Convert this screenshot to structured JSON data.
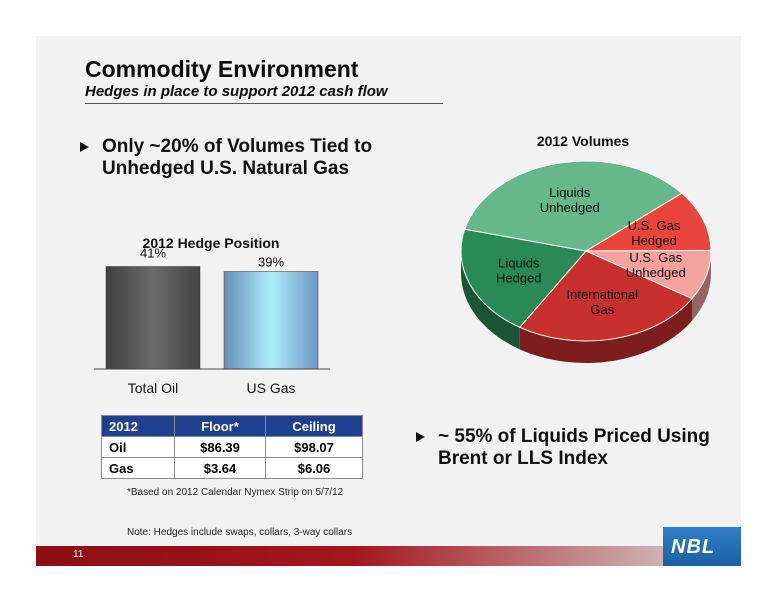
{
  "title": "Commodity Environment",
  "subtitle": "Hedges in place to support 2012 cash flow",
  "bullets": {
    "first": {
      "line1": "Only ~20% of Volumes Tied to",
      "line2": "Unhedged U.S. Natural Gas"
    },
    "second": {
      "line1": "~ 55% of Liquids Priced Using",
      "line2": "Brent or LLS Index"
    }
  },
  "chart_data": [
    {
      "type": "bar",
      "title": "2012 Hedge Position",
      "categories": [
        "Total Oil",
        "US Gas"
      ],
      "values": [
        41,
        39
      ],
      "value_labels": [
        "41%",
        "39%"
      ],
      "colors": [
        "#555555",
        "#8bbdf0"
      ],
      "ylim": [
        0,
        100
      ],
      "grid": false
    },
    {
      "type": "pie",
      "title": "2012 Volumes",
      "labels": [
        "U.S. Gas Hedged",
        "U.S. Gas Unhedged",
        "International Gas",
        "Liquids Hedged",
        "Liquids Unhedged"
      ],
      "values": [
        11,
        9,
        25,
        20,
        35
      ],
      "colors": [
        "#e8463c",
        "#f3a29c",
        "#c8302e",
        "#2a8a57",
        "#66b78a"
      ],
      "start_angle_deg": -40,
      "grid": false
    }
  ],
  "table": {
    "headers": [
      "2012",
      "Floor*",
      "Ceiling"
    ],
    "rows": [
      {
        "name": "Oil",
        "floor": "$86.39",
        "ceiling": "$98.07"
      },
      {
        "name": "Gas",
        "floor": "$3.64",
        "ceiling": "$6.06"
      }
    ]
  },
  "footnote": "*Based on 2012 Calendar Nymex Strip on 5/7/12",
  "note": "Note: Hedges include swaps, collars, 3-way collars",
  "page_number": "11",
  "logo": "NBL"
}
